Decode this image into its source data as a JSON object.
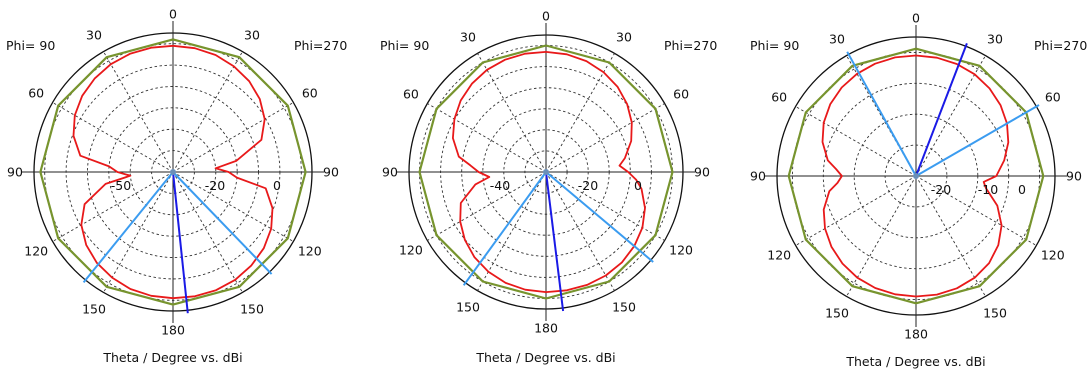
{
  "chart_data": [
    {
      "type": "polar",
      "xlabel": "Theta / Degree vs. dBi",
      "phi_left_label": "Phi= 90",
      "phi_right_label": "Phi=270",
      "angle_tick_labels": [
        "0",
        "30",
        "60",
        "90",
        "120",
        "150",
        "180",
        "150",
        "120",
        "90",
        "60",
        "30"
      ],
      "radial_tick_labels": [
        "-50",
        "-20",
        "0"
      ],
      "rlim": [
        -60,
        5
      ],
      "series": [
        {
          "color": "#e8191a",
          "theta": [
            0,
            10,
            20,
            30,
            40,
            50,
            60,
            70,
            80,
            85,
            90,
            95,
            100,
            110,
            120,
            130,
            140,
            150,
            160,
            170,
            180,
            190,
            200,
            210,
            220,
            230,
            240,
            250,
            260,
            265,
            270,
            275,
            280,
            290,
            300,
            310,
            320,
            330,
            340,
            350,
            360
          ],
          "values": [
            -1,
            -1.2,
            -1.8,
            -3,
            -4.6,
            -7,
            -10.5,
            -16,
            -30,
            -40,
            -34,
            -30,
            -16,
            -10.5,
            -7,
            -4.6,
            -3,
            -1.8,
            -1.2,
            -1,
            -1,
            -1.2,
            -1.8,
            -3,
            -4.6,
            -7,
            -10.5,
            -16,
            -28,
            -40,
            -34,
            -30,
            -16,
            -10.5,
            -7,
            -4.6,
            -3,
            -1.8,
            -1.2,
            -1,
            -1
          ]
        },
        {
          "color": "#77942e",
          "theta": [
            0,
            30,
            60,
            90,
            120,
            150,
            180,
            210,
            240,
            270,
            300,
            330,
            360
          ],
          "values": [
            2,
            2,
            2,
            2,
            2,
            2,
            2,
            2,
            2,
            2,
            2,
            2,
            2
          ]
        }
      ],
      "markers": [
        {
          "theta": 136,
          "color": "#3b9cf0"
        },
        {
          "theta": 219,
          "color": "#3b9cf0"
        },
        {
          "theta": 174,
          "color": "#1a1ae6"
        }
      ]
    },
    {
      "type": "polar",
      "xlabel": "Theta / Degree vs. dBi",
      "phi_left_label": "Phi= 90",
      "phi_right_label": "Phi=270",
      "angle_tick_labels": [
        "0",
        "30",
        "60",
        "90",
        "120",
        "150",
        "180",
        "150",
        "120",
        "90",
        "60",
        "30"
      ],
      "radial_tick_labels": [
        "-40",
        "-20",
        "0"
      ],
      "rlim": [
        -60,
        5
      ],
      "series": [
        {
          "color": "#e8191a",
          "theta": [
            0,
            10,
            20,
            30,
            40,
            50,
            60,
            70,
            80,
            85,
            90,
            95,
            100,
            110,
            120,
            130,
            140,
            150,
            160,
            170,
            180,
            190,
            200,
            210,
            220,
            230,
            240,
            250,
            260,
            265,
            270,
            275,
            280,
            290,
            300,
            310,
            320,
            330,
            340,
            350,
            360
          ],
          "values": [
            -3,
            -3.3,
            -4,
            -5.3,
            -7.2,
            -9.8,
            -13,
            -17,
            -22,
            -25,
            -21,
            -17,
            -14,
            -10,
            -7.2,
            -5.3,
            -4,
            -3.3,
            -3,
            -3,
            -3,
            -3.3,
            -4,
            -5.3,
            -7.2,
            -9.8,
            -13,
            -17,
            -26,
            -33,
            -28,
            -24,
            -18,
            -13,
            -9.8,
            -7.2,
            -5.3,
            -4,
            -3.3,
            -3,
            -3
          ]
        },
        {
          "color": "#77942e",
          "theta": [
            0,
            30,
            60,
            90,
            120,
            150,
            180,
            210,
            240,
            270,
            300,
            330,
            360
          ],
          "values": [
            0,
            0,
            0,
            0,
            0,
            0,
            0,
            0,
            0,
            0,
            0,
            0,
            0
          ]
        }
      ],
      "markers": [
        {
          "theta": 130,
          "color": "#3b9cf0"
        },
        {
          "theta": 216,
          "color": "#3b9cf0"
        },
        {
          "theta": 173,
          "color": "#1a1ae6"
        }
      ]
    },
    {
      "type": "polar",
      "xlabel": "Theta / Degree vs. dBi",
      "phi_left_label": "Phi= 90",
      "phi_right_label": "Phi=270",
      "angle_tick_labels": [
        "0",
        "30",
        "60",
        "90",
        "120",
        "150",
        "180",
        "150",
        "120",
        "90",
        "60",
        "30"
      ],
      "radial_tick_labels": [
        "-20",
        "-10",
        "0"
      ],
      "rlim": [
        -40,
        5
      ],
      "series": [
        {
          "color": "#e8191a",
          "theta": [
            0,
            10,
            20,
            30,
            40,
            50,
            60,
            70,
            80,
            90,
            95,
            100,
            110,
            120,
            130,
            140,
            150,
            160,
            170,
            180,
            190,
            200,
            210,
            220,
            230,
            240,
            250,
            260,
            265,
            270,
            275,
            280,
            290,
            300,
            310,
            320,
            330,
            340,
            350,
            360
          ],
          "values": [
            -1,
            -1.1,
            -1.4,
            -2,
            -3,
            -4.3,
            -6,
            -8.2,
            -11,
            -14,
            -18,
            -17,
            -12,
            -8,
            -5.2,
            -3.2,
            -2,
            -1.3,
            -1,
            -1,
            -1.1,
            -1.4,
            -2,
            -3,
            -4.3,
            -6,
            -8.2,
            -11.5,
            -14.5,
            -16,
            -14,
            -11,
            -7.8,
            -5.5,
            -3.8,
            -2.6,
            -1.8,
            -1.3,
            -1,
            -1
          ]
        },
        {
          "color": "#77942e",
          "theta": [
            0,
            30,
            60,
            90,
            120,
            150,
            180,
            210,
            240,
            270,
            300,
            330,
            360
          ],
          "values": [
            1.2,
            1.2,
            1.2,
            1.2,
            1.2,
            1.2,
            1.2,
            1.2,
            1.2,
            1.2,
            1.2,
            1.2,
            1.2
          ]
        }
      ],
      "markers": [
        {
          "theta": 60,
          "color": "#3b9cf0"
        },
        {
          "theta": 331,
          "color": "#3b9cf0"
        },
        {
          "theta": 21,
          "color": "#1a1ae6"
        }
      ]
    }
  ]
}
